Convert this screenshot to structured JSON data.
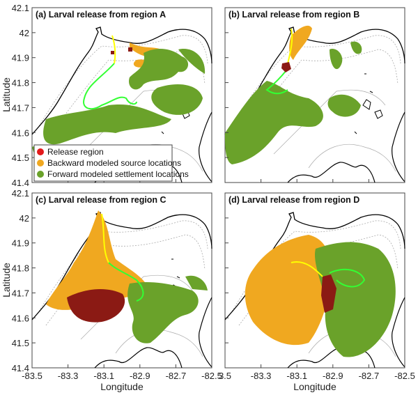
{
  "figure": {
    "panels": [
      {
        "id": "a",
        "title": "(a) Larval release from region A"
      },
      {
        "id": "b",
        "title": "(b) Larval release from region B"
      },
      {
        "id": "c",
        "title": "(c) Larval release from region C"
      },
      {
        "id": "d",
        "title": "(d) Larval release from region D"
      }
    ],
    "x_axis": {
      "label": "Longitude",
      "ticks": [
        "-83.5",
        "-83.3",
        "-83.1",
        "-82.9",
        "-82.7",
        "-82.5"
      ],
      "ticks_right": [
        "3.5",
        "-83.3",
        "-83.1",
        "-82.9",
        "-82.7",
        "-82.5"
      ],
      "range": [
        -83.5,
        -82.5
      ]
    },
    "y_axis": {
      "label": "Latitude",
      "ticks": [
        "42.1",
        "42",
        "41.9",
        "41.8",
        "41.7",
        "41.6",
        "41.5",
        "41.4"
      ],
      "range": [
        41.4,
        42.1
      ]
    },
    "legend": {
      "placement": "lower-left of panel (a)",
      "items": [
        {
          "label": "Release region",
          "color": "#e31a1c"
        },
        {
          "label": "Backward modeled source locations",
          "color": "#f0a820"
        },
        {
          "label": "Forward modeled settlement locations",
          "color": "#6aa22a"
        }
      ]
    },
    "colors": {
      "release": "#8b1a14",
      "source": "#f0a820",
      "settlement": "#6aa22a",
      "backward_track": "#ffff00",
      "forward_track": "#33ff33",
      "shoreline": "#000000",
      "contour": "#9a9a9a"
    }
  }
}
